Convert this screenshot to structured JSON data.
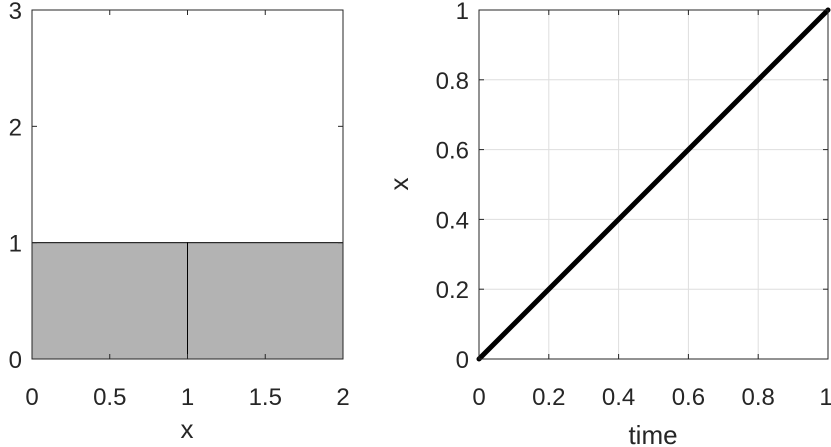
{
  "chart_data": [
    {
      "type": "area",
      "title": "",
      "xlabel": "x",
      "ylabel": "",
      "xlim": [
        0,
        2
      ],
      "ylim": [
        0,
        3
      ],
      "xticks": [
        0,
        0.5,
        1,
        1.5,
        2
      ],
      "xtick_labels": [
        "0",
        "0.5",
        "1",
        "1.5",
        "2"
      ],
      "yticks": [
        0,
        1,
        2,
        3
      ],
      "ytick_labels": [
        "0",
        "1",
        "2",
        "3"
      ],
      "grid": false,
      "fill_color": "#b3b3b3",
      "cells": [
        {
          "x0": 0,
          "x1": 1,
          "value": 1
        },
        {
          "x0": 1,
          "x1": 2,
          "value": 1
        }
      ]
    },
    {
      "type": "line",
      "title": "",
      "xlabel": "time",
      "ylabel": "x",
      "xlim": [
        0,
        1
      ],
      "ylim": [
        0,
        1
      ],
      "xticks": [
        0,
        0.2,
        0.4,
        0.6,
        0.8,
        1
      ],
      "xtick_labels": [
        "0",
        "0.2",
        "0.4",
        "0.6",
        "0.8",
        "1"
      ],
      "yticks": [
        0,
        0.2,
        0.4,
        0.6,
        0.8,
        1
      ],
      "ytick_labels": [
        "0",
        "0.2",
        "0.4",
        "0.6",
        "0.8",
        "1"
      ],
      "grid": true,
      "line_color": "#000000",
      "series": [
        {
          "x": [
            0,
            1
          ],
          "y": [
            0,
            1
          ]
        }
      ]
    }
  ]
}
